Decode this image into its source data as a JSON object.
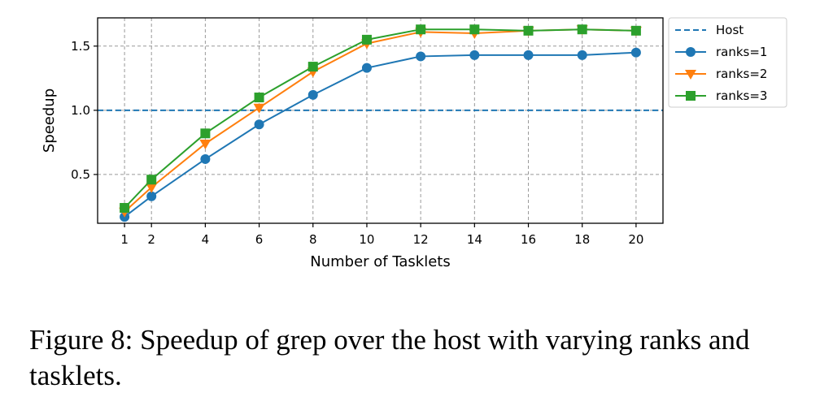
{
  "chart_data": {
    "type": "line",
    "xlabel": "Number of Tasklets",
    "ylabel": "Speedup",
    "x": [
      1,
      2,
      4,
      6,
      8,
      10,
      12,
      14,
      16,
      18,
      20
    ],
    "xticks": [
      "1",
      "2",
      "4",
      "6",
      "8",
      "10",
      "12",
      "14",
      "16",
      "18",
      "20"
    ],
    "yticks": [
      "0.5",
      "1.0",
      "1.5"
    ],
    "xlim": [
      0,
      21
    ],
    "ylim": [
      0.12,
      1.72
    ],
    "grid": true,
    "legend_position": "outside-right",
    "reference_line": {
      "name": "Host",
      "value": 1.0,
      "style": "dashed",
      "color": "#1f77b4"
    },
    "series": [
      {
        "name": "ranks=1",
        "color": "#1f77b4",
        "marker": "circle",
        "values": [
          0.17,
          0.33,
          0.62,
          0.89,
          1.12,
          1.33,
          1.42,
          1.43,
          1.43,
          1.43,
          1.45
        ]
      },
      {
        "name": "ranks=2",
        "color": "#ff7f0e",
        "marker": "triangle-down",
        "values": [
          0.21,
          0.4,
          0.74,
          1.02,
          1.3,
          1.52,
          1.61,
          1.6,
          1.62,
          1.63,
          1.62
        ]
      },
      {
        "name": "ranks=3",
        "color": "#2ca02c",
        "marker": "square",
        "values": [
          0.24,
          0.46,
          0.82,
          1.1,
          1.34,
          1.55,
          1.63,
          1.63,
          1.62,
          1.63,
          1.62
        ]
      }
    ]
  },
  "caption": "Figure 8: Speedup of grep over the host with varying ranks and tasklets."
}
